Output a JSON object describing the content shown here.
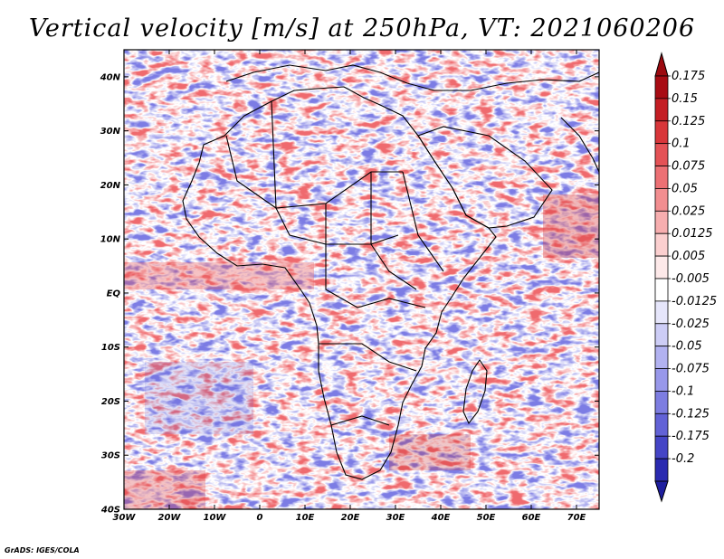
{
  "title": "Vertical velocity [m/s] at 250hPa, VT: 2021060206",
  "credit": "GrADS: IGES/COLA",
  "map": {
    "lon_range": [
      -30,
      75
    ],
    "lat_range": [
      -40,
      45
    ],
    "lon_ticks": [
      {
        "value": -30,
        "label": "30W"
      },
      {
        "value": -20,
        "label": "20W"
      },
      {
        "value": -10,
        "label": "10W"
      },
      {
        "value": 0,
        "label": "0"
      },
      {
        "value": 10,
        "label": "10E"
      },
      {
        "value": 20,
        "label": "20E"
      },
      {
        "value": 30,
        "label": "30E"
      },
      {
        "value": 40,
        "label": "40E"
      },
      {
        "value": 50,
        "label": "50E"
      },
      {
        "value": 60,
        "label": "60E"
      },
      {
        "value": 70,
        "label": "70E"
      }
    ],
    "lat_ticks": [
      {
        "value": 40,
        "label": "40N"
      },
      {
        "value": 30,
        "label": "30N"
      },
      {
        "value": 20,
        "label": "20N"
      },
      {
        "value": 10,
        "label": "10N"
      },
      {
        "value": 0,
        "label": "EQ"
      },
      {
        "value": -10,
        "label": "10S"
      },
      {
        "value": -20,
        "label": "20S"
      },
      {
        "value": -30,
        "label": "30S"
      },
      {
        "value": -40,
        "label": "40S"
      }
    ]
  },
  "colorbar": {
    "levels": [
      {
        "label": "0.175",
        "color": "#a80c14"
      },
      {
        "label": "0.15",
        "color": "#c41e24"
      },
      {
        "label": "0.125",
        "color": "#d8363a"
      },
      {
        "label": "0.1",
        "color": "#e45256"
      },
      {
        "label": "0.075",
        "color": "#ec7074"
      },
      {
        "label": "0.05",
        "color": "#f28e90"
      },
      {
        "label": "0.025",
        "color": "#f7aeaf"
      },
      {
        "label": "0.0125",
        "color": "#fbcfcf"
      },
      {
        "label": "0.005",
        "color": "#fde9e9"
      },
      {
        "label": "-0.005",
        "color": "#ffffff"
      },
      {
        "label": "-0.0125",
        "color": "#e6e6fb"
      },
      {
        "label": "-0.025",
        "color": "#cdcdf6"
      },
      {
        "label": "-0.05",
        "color": "#b2b2f1"
      },
      {
        "label": "-0.075",
        "color": "#9898ea"
      },
      {
        "label": "-0.1",
        "color": "#7d7de1"
      },
      {
        "label": "-0.125",
        "color": "#6262d6"
      },
      {
        "label": "-0.175",
        "color": "#4545c6"
      },
      {
        "label": "-0.2",
        "color": "#2a2ab0"
      }
    ],
    "top_color": "#9c0a10",
    "bottom_color": "#1e1e9e"
  }
}
